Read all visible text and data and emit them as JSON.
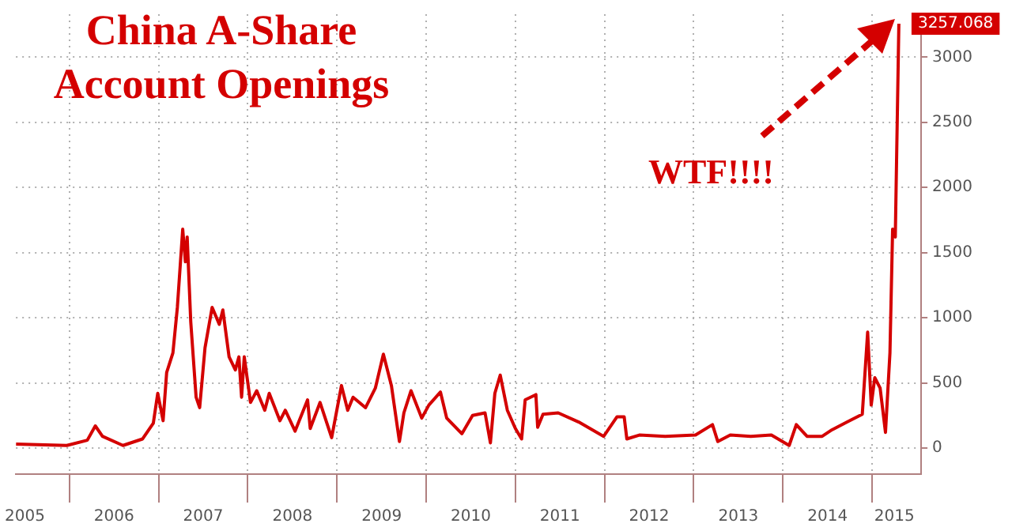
{
  "chart_data": {
    "type": "line",
    "title": "China A-Share Account Openings",
    "annotations": [
      "WTF!!!!",
      {
        "text": "3257.068",
        "x": 2015.3,
        "y": 3257.068
      }
    ],
    "series": [
      {
        "color": "#d40000",
        "x": [
          2005.4,
          2005.97,
          2006.2,
          2006.29,
          2006.37,
          2006.6,
          2006.82,
          2006.94,
          2006.99,
          2007.05,
          2007.09,
          2007.16,
          2007.21,
          2007.27,
          2007.3,
          2007.32,
          2007.36,
          2007.42,
          2007.46,
          2007.52,
          2007.6,
          2007.68,
          2007.72,
          2007.79,
          2007.86,
          2007.9,
          2007.93,
          2007.96,
          2008.03,
          2008.1,
          2008.19,
          2008.24,
          2008.36,
          2008.42,
          2008.53,
          2008.67,
          2008.7,
          2008.81,
          2008.94,
          2009.05,
          2009.12,
          2009.18,
          2009.32,
          2009.43,
          2009.52,
          2009.61,
          2009.7,
          2009.75,
          2009.83,
          2009.95,
          2010.03,
          2010.16,
          2010.23,
          2010.4,
          2010.52,
          2010.66,
          2010.72,
          2010.77,
          2010.83,
          2010.91,
          2011.0,
          2011.07,
          2011.11,
          2011.23,
          2011.25,
          2011.31,
          2011.48,
          2011.71,
          2011.99,
          2012.14,
          2012.22,
          2012.25,
          2012.39,
          2012.68,
          2013.02,
          2013.21,
          2013.27,
          2013.41,
          2013.64,
          2013.87,
          2014.07,
          2014.15,
          2014.27,
          2014.44,
          2014.55,
          2014.72,
          2014.89,
          2014.95,
          2014.99,
          2015.03,
          2015.09,
          2015.15,
          2015.2,
          2015.23,
          2015.26,
          2015.3
        ],
        "values": [
          30,
          20,
          60,
          170,
          90,
          20,
          70,
          190,
          420,
          210,
          580,
          730,
          1080,
          1680,
          1430,
          1620,
          970,
          390,
          310,
          770,
          1080,
          950,
          1060,
          700,
          600,
          700,
          390,
          700,
          350,
          440,
          290,
          420,
          210,
          290,
          130,
          370,
          150,
          350,
          80,
          480,
          290,
          390,
          310,
          460,
          720,
          480,
          50,
          270,
          440,
          230,
          330,
          430,
          230,
          110,
          250,
          270,
          40,
          420,
          560,
          290,
          150,
          70,
          370,
          410,
          160,
          260,
          270,
          200,
          90,
          240,
          240,
          70,
          100,
          90,
          100,
          180,
          50,
          100,
          90,
          100,
          20,
          180,
          90,
          90,
          140,
          200,
          260,
          890,
          330,
          540,
          460,
          120,
          730,
          1680,
          1620,
          3257.068
        ]
      }
    ],
    "xlim": [
      2005.4,
      2015.55
    ],
    "xticks": [
      {
        "value": 2005.5,
        "label": "2005"
      },
      {
        "value": 2006,
        "label": null
      },
      {
        "value": 2006.5,
        "label": "2006"
      },
      {
        "value": 2007,
        "label": null
      },
      {
        "value": 2007.5,
        "label": "2007"
      },
      {
        "value": 2008,
        "label": null
      },
      {
        "value": 2008.5,
        "label": "2008"
      },
      {
        "value": 2009,
        "label": null
      },
      {
        "value": 2009.5,
        "label": "2009"
      },
      {
        "value": 2010,
        "label": null
      },
      {
        "value": 2010.5,
        "label": "2010"
      },
      {
        "value": 2011,
        "label": null
      },
      {
        "value": 2011.5,
        "label": "2011"
      },
      {
        "value": 2012,
        "label": null
      },
      {
        "value": 2012.5,
        "label": "2012"
      },
      {
        "value": 2013,
        "label": null
      },
      {
        "value": 2013.5,
        "label": "2013"
      },
      {
        "value": 2014,
        "label": null
      },
      {
        "value": 2014.5,
        "label": "2014"
      },
      {
        "value": 2015,
        "label": null
      },
      {
        "value": 2015.25,
        "label": "2015"
      }
    ],
    "ylim": [
      -200,
      3330
    ],
    "yticks": [
      0,
      500,
      1000,
      1500,
      2000,
      2500,
      3000
    ],
    "grid": true
  }
}
